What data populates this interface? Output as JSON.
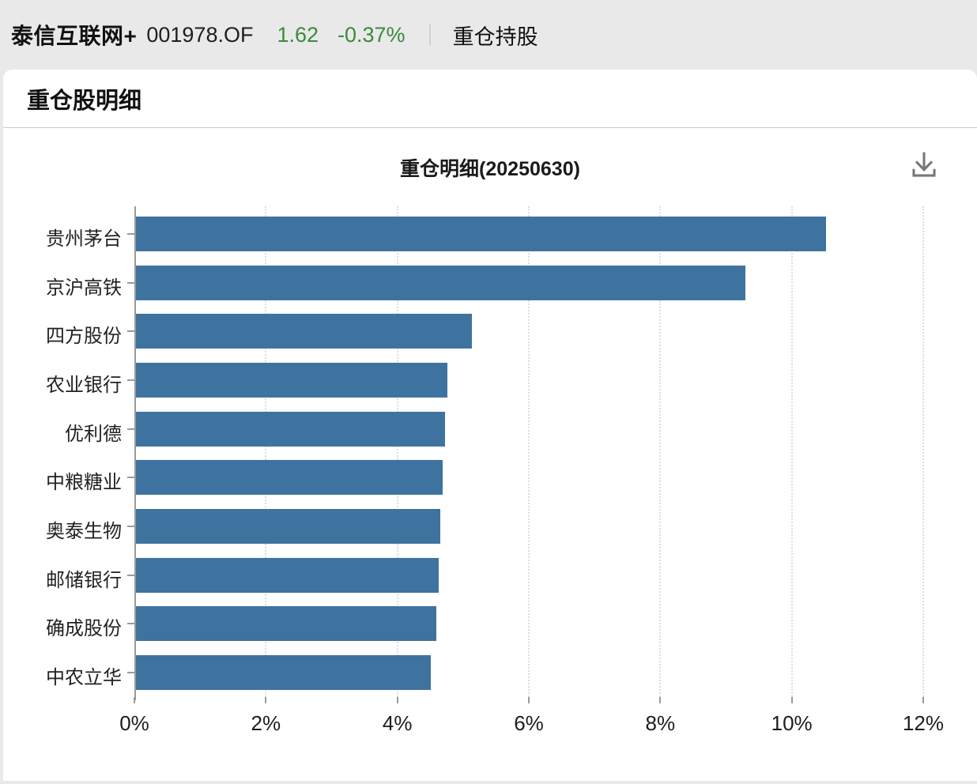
{
  "header": {
    "fund_name": "泰信互联网+",
    "fund_code": "001978.OF",
    "nav": "1.62",
    "change_percent": "-0.37%",
    "tab": "重仓持股"
  },
  "section": {
    "title": "重仓股明细"
  },
  "chart_data": {
    "type": "bar",
    "orientation": "horizontal",
    "title": "重仓明细(20250630)",
    "categories": [
      "贵州茅台",
      "京沪高铁",
      "四方股份",
      "农业银行",
      "优利德",
      "中粮糖业",
      "奥泰生物",
      "邮储银行",
      "确成股份",
      "中农立华"
    ],
    "values": [
      10.5,
      9.27,
      5.11,
      4.74,
      4.7,
      4.66,
      4.63,
      4.6,
      4.57,
      4.49
    ],
    "value_unit": "%",
    "x_tick_labels": [
      "0%",
      "2%",
      "4%",
      "6%",
      "8%",
      "10%",
      "12%"
    ],
    "x_tick_values": [
      0,
      2,
      4,
      6,
      8,
      10,
      12
    ],
    "xlim": [
      0,
      12
    ],
    "grid": "vertical-dotted",
    "legend": "none",
    "bar_color": "#3e73a0"
  },
  "icons": {
    "download": "download-icon"
  },
  "colors": {
    "change_green": "#3a8a3c",
    "page_background": "#e9e9e9",
    "card_background": "#ffffff",
    "axis_gray": "#9a9a9a"
  }
}
